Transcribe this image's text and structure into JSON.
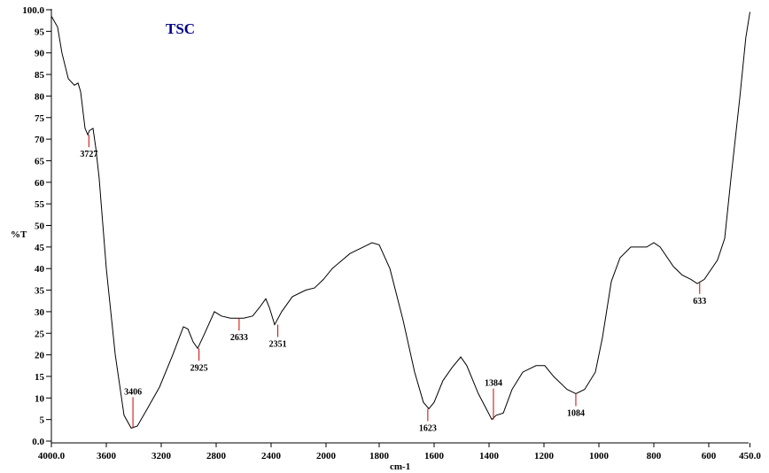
{
  "chart_data": {
    "type": "line",
    "title": "TSC",
    "xlabel": "cm-1",
    "ylabel": "%T",
    "xlim": [
      4000,
      450
    ],
    "ylim": [
      0,
      100
    ],
    "x_scale_note": "scale doubles below 2000",
    "x_ticks": [
      4000,
      3600,
      3200,
      2800,
      2400,
      2000,
      1800,
      1600,
      1400,
      1200,
      1000,
      800,
      600,
      450
    ],
    "x_tick_labels": [
      "4000.0",
      "3600",
      "3200",
      "2800",
      "2400",
      "2000",
      "1800",
      "1600",
      "1400",
      "1200",
      "1000",
      "800",
      "600",
      "450.0"
    ],
    "y_ticks": [
      0,
      5,
      10,
      15,
      20,
      25,
      30,
      35,
      40,
      45,
      50,
      55,
      60,
      65,
      70,
      75,
      80,
      85,
      90,
      95,
      100
    ],
    "y_tick_labels": [
      "0.0",
      "5",
      "10",
      "15",
      "20",
      "25",
      "30",
      "35",
      "40",
      "45",
      "50",
      "55",
      "60",
      "65",
      "70",
      "75",
      "80",
      "85",
      "90",
      "95",
      "100.0"
    ],
    "grid": false,
    "series": [
      {
        "name": "TSC",
        "color": "#000000",
        "x": [
          4000,
          3955,
          3923,
          3877,
          3832,
          3806,
          3787,
          3755,
          3735,
          3723,
          3697,
          3677,
          3652,
          3600,
          3535,
          3471,
          3419,
          3374,
          3310,
          3213,
          3116,
          3039,
          3006,
          2968,
          2935,
          2890,
          2813,
          2761,
          2697,
          2645,
          2600,
          2535,
          2484,
          2439,
          2413,
          2374,
          2323,
          2245,
          2148,
          2084,
          2019,
          1971,
          1906,
          1858,
          1826,
          1800,
          1761,
          1713,
          1671,
          1639,
          1619,
          1600,
          1568,
          1535,
          1503,
          1481,
          1439,
          1406,
          1390,
          1374,
          1348,
          1316,
          1277,
          1229,
          1197,
          1165,
          1116,
          1084,
          1052,
          1013,
          987,
          955,
          923,
          884,
          826,
          800,
          777,
          729,
          697,
          665,
          642,
          616,
          568,
          542,
          519,
          487,
          465,
          450
        ],
        "y": [
          98.5,
          96,
          90,
          84,
          82.5,
          83,
          81,
          72.5,
          71,
          72,
          72.5,
          68,
          61,
          40,
          20,
          6,
          3,
          3.5,
          7,
          12.5,
          20,
          26.5,
          26,
          23,
          21.5,
          24.5,
          30,
          29,
          28.5,
          28.5,
          28.5,
          29,
          31,
          33,
          31,
          27,
          30,
          33.5,
          35,
          35.5,
          37.5,
          40,
          43.5,
          45,
          46,
          45.5,
          40,
          28,
          16,
          9,
          7.5,
          9,
          14,
          17,
          19.5,
          17.5,
          11,
          7,
          5,
          6,
          6.5,
          12,
          16,
          17.5,
          17.5,
          15,
          12,
          11,
          12,
          16,
          24,
          37,
          42.5,
          45,
          45,
          46,
          45,
          40.5,
          38.5,
          37.5,
          36.5,
          37.5,
          42,
          47,
          61,
          79.5,
          93.5,
          99.5
        ]
      }
    ],
    "peaks": [
      {
        "label": "3727",
        "x": 3727,
        "y": 71,
        "pos": "below"
      },
      {
        "label": "3406",
        "x": 3406,
        "y": 3,
        "pos": "above"
      },
      {
        "label": "2925",
        "x": 2925,
        "y": 21.5,
        "pos": "below"
      },
      {
        "label": "2633",
        "x": 2633,
        "y": 28.5,
        "pos": "below"
      },
      {
        "label": "2351",
        "x": 2351,
        "y": 27,
        "pos": "below"
      },
      {
        "label": "1623",
        "x": 1623,
        "y": 7.5,
        "pos": "below"
      },
      {
        "label": "1384",
        "x": 1384,
        "y": 5,
        "pos": "above"
      },
      {
        "label": "1084",
        "x": 1084,
        "y": 11,
        "pos": "below"
      },
      {
        "label": "633",
        "x": 633,
        "y": 37,
        "pos": "below"
      }
    ],
    "peak_color": "#cc0000"
  }
}
